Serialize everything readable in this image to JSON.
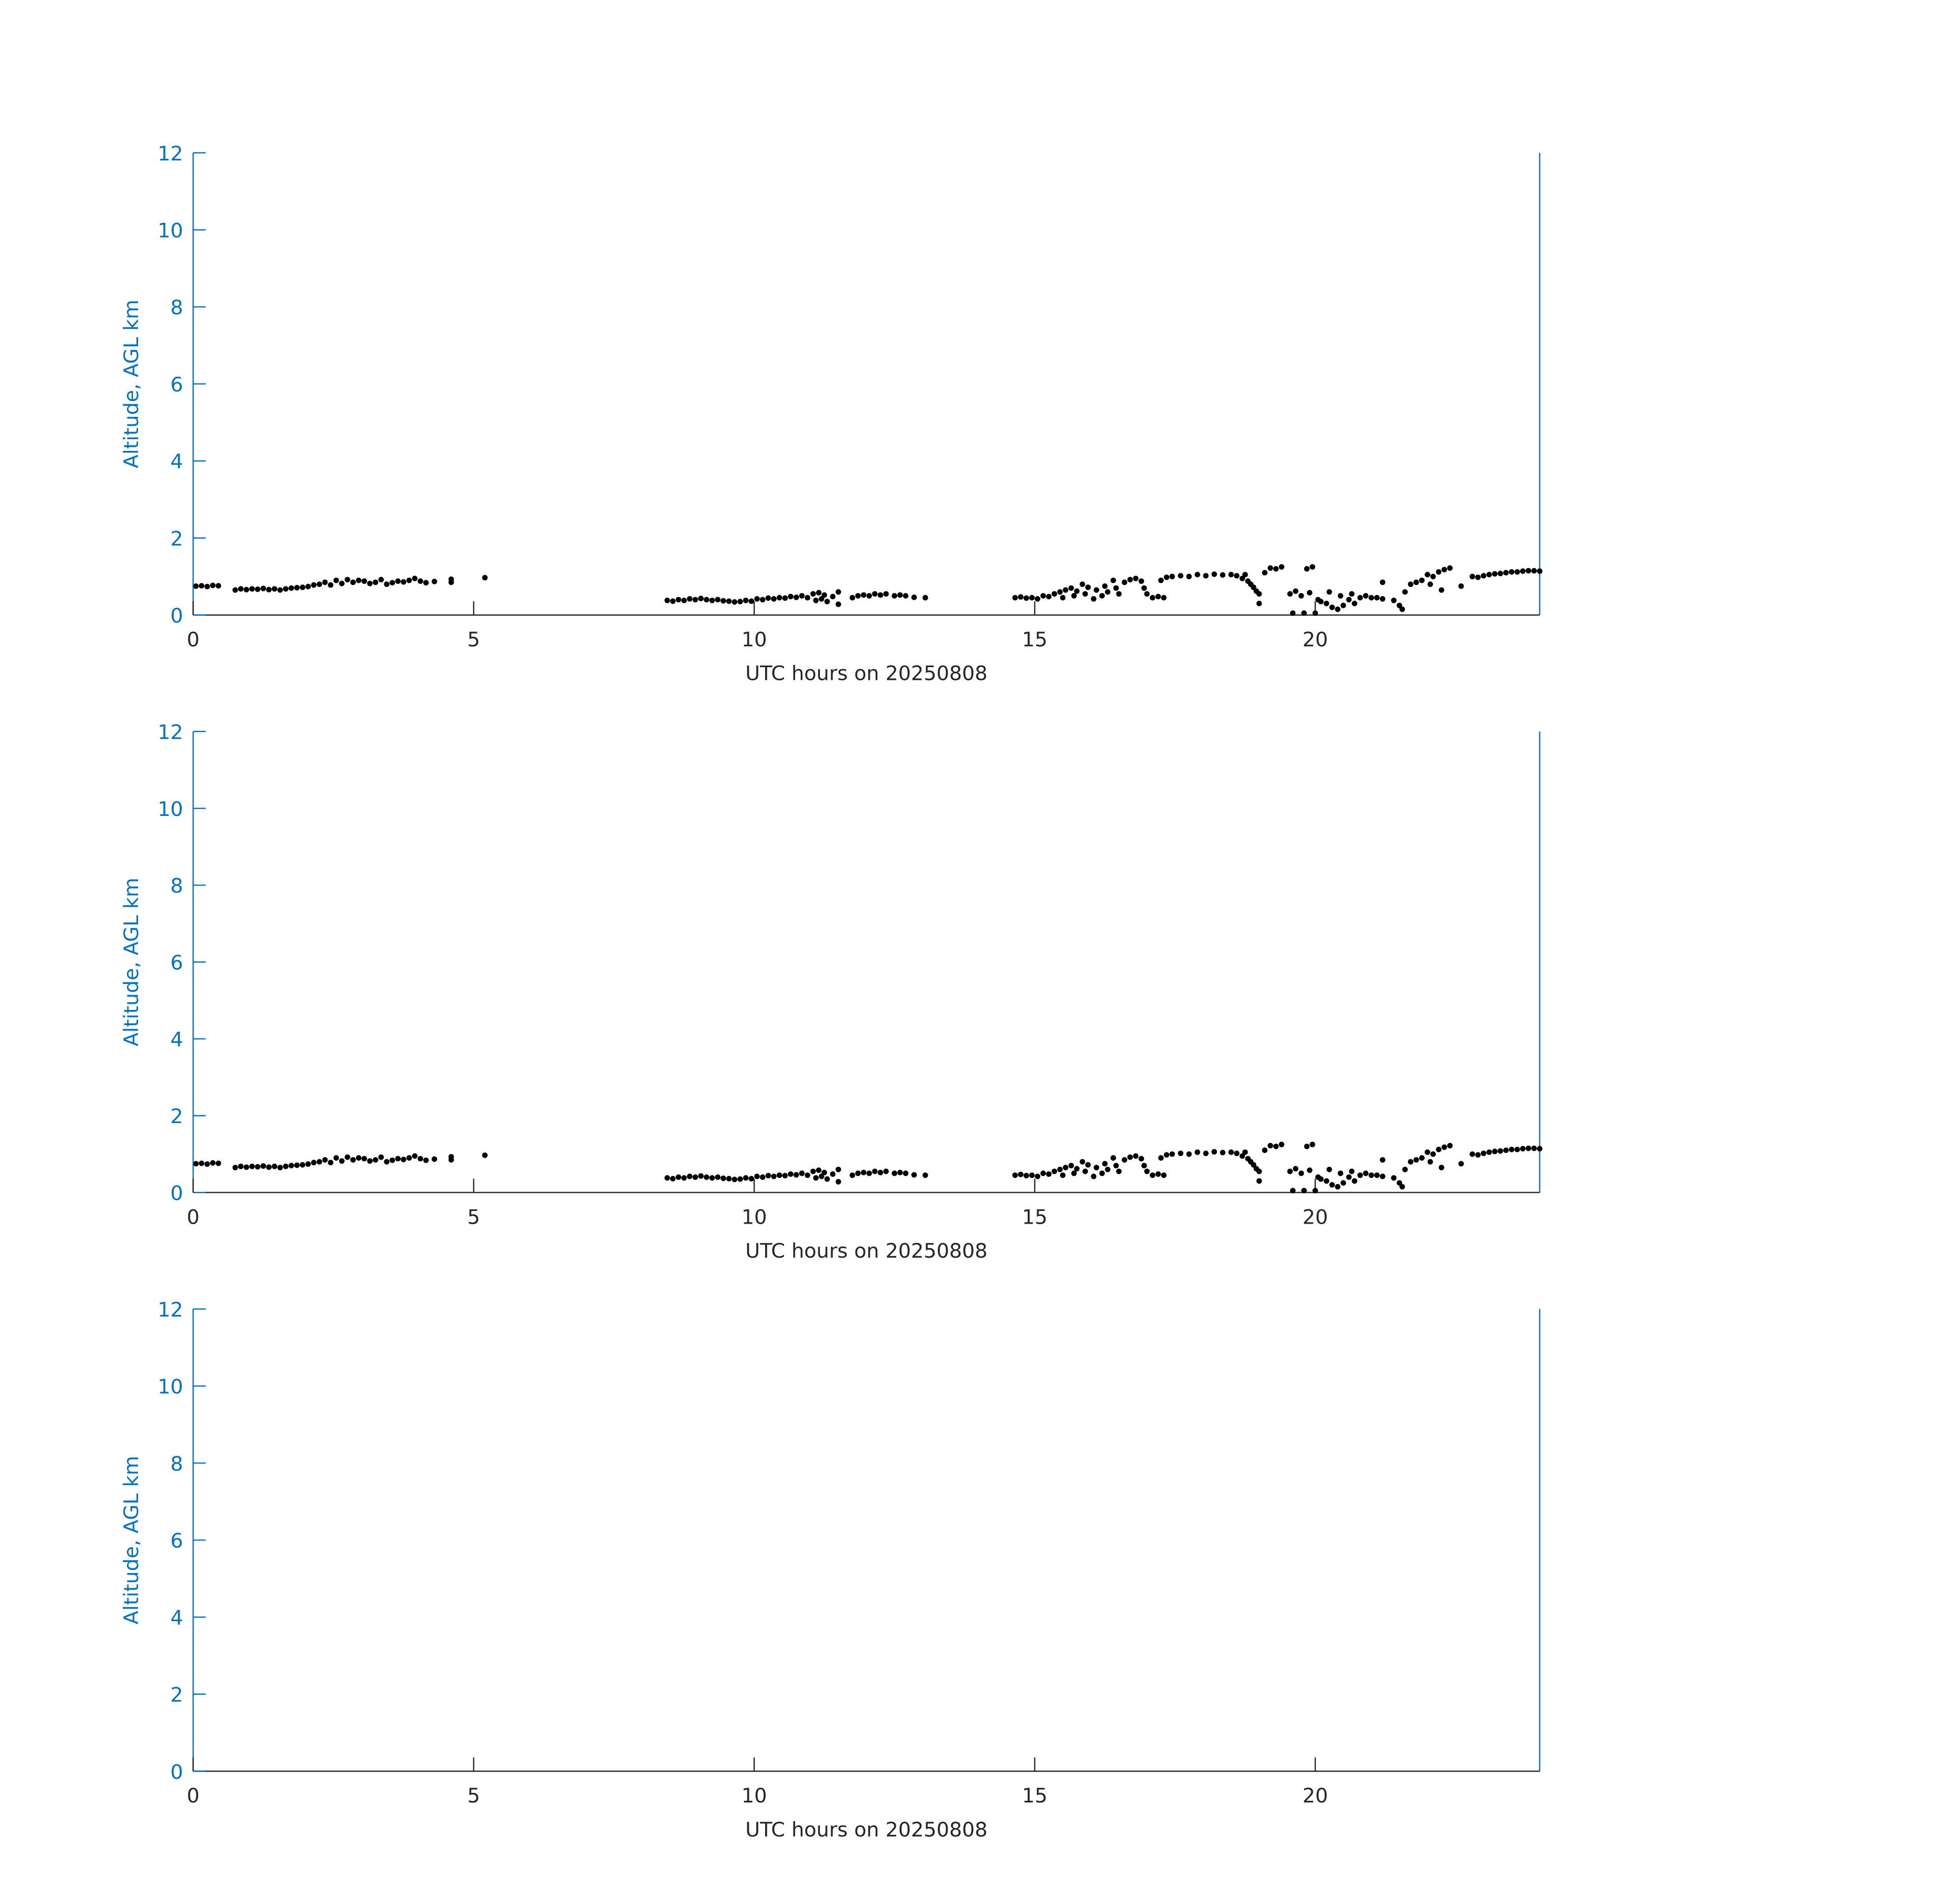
{
  "chart_data": [
    {
      "type": "scatter",
      "xlabel": "UTC hours on 20250808",
      "ylabel": "Altitude, AGL km",
      "xlim": [
        0,
        24
      ],
      "ylim": [
        0,
        12
      ],
      "xticks": [
        0,
        5,
        10,
        15,
        20
      ],
      "yticks": [
        0,
        2,
        4,
        6,
        8,
        10,
        12
      ],
      "grid": false,
      "colors": {
        "axis_y": "#0072bd",
        "axis_x": "#262626",
        "points": "#000000"
      },
      "points": "shared"
    },
    {
      "type": "scatter",
      "xlabel": "UTC hours on 20250808",
      "ylabel": "Altitude, AGL km",
      "xlim": [
        0,
        24
      ],
      "ylim": [
        0,
        12
      ],
      "xticks": [
        0,
        5,
        10,
        15,
        20
      ],
      "yticks": [
        0,
        2,
        4,
        6,
        8,
        10,
        12
      ],
      "grid": false,
      "colors": {
        "axis_y": "#0072bd",
        "axis_x": "#262626",
        "points": "#000000"
      },
      "points": "shared"
    },
    {
      "type": "scatter",
      "xlabel": "UTC hours on 20250808",
      "ylabel": "Altitude, AGL km",
      "xlim": [
        0,
        24
      ],
      "ylim": [
        0,
        12
      ],
      "xticks": [
        0,
        5,
        10,
        15,
        20
      ],
      "yticks": [
        0,
        2,
        4,
        6,
        8,
        10,
        12
      ],
      "grid": false,
      "colors": {
        "axis_y": "#0072bd",
        "axis_x": "#262626",
        "points": "#000000"
      },
      "points": []
    }
  ],
  "shared_points": [
    [
      0.05,
      0.75
    ],
    [
      0.15,
      0.76
    ],
    [
      0.25,
      0.74
    ],
    [
      0.35,
      0.77
    ],
    [
      0.45,
      0.76
    ],
    [
      0.75,
      0.65
    ],
    [
      0.85,
      0.68
    ],
    [
      0.95,
      0.66
    ],
    [
      1.05,
      0.68
    ],
    [
      1.15,
      0.67
    ],
    [
      1.25,
      0.69
    ],
    [
      1.35,
      0.66
    ],
    [
      1.45,
      0.68
    ],
    [
      1.55,
      0.65
    ],
    [
      1.65,
      0.68
    ],
    [
      1.75,
      0.7
    ],
    [
      1.85,
      0.71
    ],
    [
      1.95,
      0.72
    ],
    [
      2.05,
      0.74
    ],
    [
      2.15,
      0.78
    ],
    [
      2.25,
      0.8
    ],
    [
      2.35,
      0.85
    ],
    [
      2.45,
      0.78
    ],
    [
      2.55,
      0.9
    ],
    [
      2.65,
      0.82
    ],
    [
      2.75,
      0.92
    ],
    [
      2.85,
      0.85
    ],
    [
      2.95,
      0.9
    ],
    [
      3.05,
      0.88
    ],
    [
      3.15,
      0.82
    ],
    [
      3.25,
      0.85
    ],
    [
      3.35,
      0.92
    ],
    [
      3.45,
      0.8
    ],
    [
      3.55,
      0.84
    ],
    [
      3.65,
      0.88
    ],
    [
      3.75,
      0.86
    ],
    [
      3.85,
      0.9
    ],
    [
      3.95,
      0.95
    ],
    [
      4.05,
      0.88
    ],
    [
      4.15,
      0.84
    ],
    [
      4.3,
      0.87
    ],
    [
      4.6,
      0.93
    ],
    [
      4.6,
      0.85
    ],
    [
      5.2,
      0.97
    ],
    [
      8.45,
      0.38
    ],
    [
      8.55,
      0.36
    ],
    [
      8.65,
      0.4
    ],
    [
      8.75,
      0.38
    ],
    [
      8.85,
      0.42
    ],
    [
      8.95,
      0.4
    ],
    [
      9.05,
      0.43
    ],
    [
      9.15,
      0.4
    ],
    [
      9.25,
      0.38
    ],
    [
      9.35,
      0.4
    ],
    [
      9.45,
      0.37
    ],
    [
      9.55,
      0.36
    ],
    [
      9.65,
      0.34
    ],
    [
      9.75,
      0.35
    ],
    [
      9.85,
      0.38
    ],
    [
      9.95,
      0.36
    ],
    [
      10.05,
      0.42
    ],
    [
      10.15,
      0.4
    ],
    [
      10.25,
      0.44
    ],
    [
      10.35,
      0.42
    ],
    [
      10.45,
      0.45
    ],
    [
      10.55,
      0.44
    ],
    [
      10.65,
      0.48
    ],
    [
      10.75,
      0.46
    ],
    [
      10.85,
      0.5
    ],
    [
      10.95,
      0.45
    ],
    [
      11.05,
      0.55
    ],
    [
      11.1,
      0.38
    ],
    [
      11.15,
      0.58
    ],
    [
      11.2,
      0.42
    ],
    [
      11.25,
      0.52
    ],
    [
      11.3,
      0.35
    ],
    [
      11.4,
      0.48
    ],
    [
      11.5,
      0.6
    ],
    [
      11.5,
      0.28
    ],
    [
      11.75,
      0.45
    ],
    [
      11.85,
      0.5
    ],
    [
      11.95,
      0.52
    ],
    [
      12.05,
      0.5
    ],
    [
      12.15,
      0.55
    ],
    [
      12.25,
      0.52
    ],
    [
      12.35,
      0.55
    ],
    [
      12.5,
      0.5
    ],
    [
      12.6,
      0.52
    ],
    [
      12.7,
      0.5
    ],
    [
      12.85,
      0.46
    ],
    [
      13.05,
      0.45
    ],
    [
      14.65,
      0.45
    ],
    [
      14.75,
      0.47
    ],
    [
      14.85,
      0.44
    ],
    [
      14.95,
      0.45
    ],
    [
      15.05,
      0.42
    ],
    [
      15.15,
      0.5
    ],
    [
      15.25,
      0.48
    ],
    [
      15.35,
      0.55
    ],
    [
      15.45,
      0.6
    ],
    [
      15.5,
      0.45
    ],
    [
      15.55,
      0.65
    ],
    [
      15.65,
      0.7
    ],
    [
      15.7,
      0.5
    ],
    [
      15.75,
      0.62
    ],
    [
      15.85,
      0.8
    ],
    [
      15.9,
      0.55
    ],
    [
      15.95,
      0.72
    ],
    [
      16.05,
      0.42
    ],
    [
      16.1,
      0.65
    ],
    [
      16.2,
      0.5
    ],
    [
      16.25,
      0.75
    ],
    [
      16.3,
      0.6
    ],
    [
      16.4,
      0.9
    ],
    [
      16.45,
      0.7
    ],
    [
      16.5,
      0.55
    ],
    [
      16.6,
      0.85
    ],
    [
      16.7,
      0.92
    ],
    [
      16.8,
      0.95
    ],
    [
      16.9,
      0.88
    ],
    [
      16.95,
      0.7
    ],
    [
      17.0,
      0.55
    ],
    [
      17.1,
      0.45
    ],
    [
      17.2,
      0.48
    ],
    [
      17.3,
      0.45
    ],
    [
      17.25,
      0.9
    ],
    [
      17.35,
      0.98
    ],
    [
      17.45,
      1.0
    ],
    [
      17.6,
      1.02
    ],
    [
      17.75,
      1.0
    ],
    [
      17.9,
      1.05
    ],
    [
      18.05,
      1.02
    ],
    [
      18.2,
      1.06
    ],
    [
      18.35,
      1.04
    ],
    [
      18.5,
      1.05
    ],
    [
      18.6,
      1.02
    ],
    [
      18.7,
      0.95
    ],
    [
      18.75,
      1.05
    ],
    [
      18.8,
      0.88
    ],
    [
      18.85,
      0.8
    ],
    [
      18.9,
      0.72
    ],
    [
      18.95,
      0.62
    ],
    [
      19.0,
      0.55
    ],
    [
      19.0,
      0.3
    ],
    [
      19.1,
      1.1
    ],
    [
      19.2,
      1.22
    ],
    [
      19.3,
      1.2
    ],
    [
      19.4,
      1.25
    ],
    [
      19.55,
      0.55
    ],
    [
      19.6,
      0.05
    ],
    [
      19.65,
      0.62
    ],
    [
      19.75,
      0.5
    ],
    [
      19.8,
      0.05
    ],
    [
      19.85,
      1.2
    ],
    [
      19.9,
      0.58
    ],
    [
      19.95,
      1.25
    ],
    [
      20.0,
      0.05
    ],
    [
      20.05,
      0.4
    ],
    [
      20.1,
      0.35
    ],
    [
      20.2,
      0.3
    ],
    [
      20.25,
      0.6
    ],
    [
      20.3,
      0.2
    ],
    [
      20.4,
      0.15
    ],
    [
      20.45,
      0.5
    ],
    [
      20.5,
      0.25
    ],
    [
      20.6,
      0.4
    ],
    [
      20.65,
      0.55
    ],
    [
      20.7,
      0.3
    ],
    [
      20.8,
      0.45
    ],
    [
      20.9,
      0.5
    ],
    [
      21.0,
      0.45
    ],
    [
      21.1,
      0.45
    ],
    [
      21.2,
      0.42
    ],
    [
      21.2,
      0.85
    ],
    [
      21.4,
      0.38
    ],
    [
      21.5,
      0.25
    ],
    [
      21.55,
      0.15
    ],
    [
      21.6,
      0.6
    ],
    [
      21.7,
      0.8
    ],
    [
      21.8,
      0.85
    ],
    [
      21.9,
      0.9
    ],
    [
      22.0,
      1.05
    ],
    [
      22.05,
      0.8
    ],
    [
      22.1,
      1.0
    ],
    [
      22.2,
      1.12
    ],
    [
      22.25,
      0.65
    ],
    [
      22.3,
      1.18
    ],
    [
      22.4,
      1.22
    ],
    [
      22.6,
      0.75
    ],
    [
      22.8,
      1.0
    ],
    [
      22.9,
      0.98
    ],
    [
      23.0,
      1.02
    ],
    [
      23.1,
      1.05
    ],
    [
      23.2,
      1.07
    ],
    [
      23.3,
      1.08
    ],
    [
      23.4,
      1.1
    ],
    [
      23.5,
      1.12
    ],
    [
      23.6,
      1.12
    ],
    [
      23.7,
      1.14
    ],
    [
      23.8,
      1.15
    ],
    [
      23.9,
      1.15
    ],
    [
      24.0,
      1.14
    ]
  ]
}
